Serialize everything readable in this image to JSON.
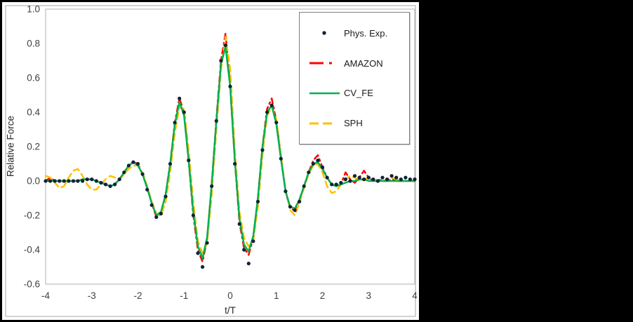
{
  "chart_data": {
    "type": "line",
    "title": "",
    "xlabel": "t/T",
    "ylabel": "Relative Force",
    "xlim": [
      -4,
      4
    ],
    "ylim": [
      -0.6,
      1.0
    ],
    "grid": false,
    "legend_position": "top-right-inside",
    "x_tick_labels": [
      "-4",
      "-3",
      "-2",
      "-1",
      "0",
      "1",
      "2",
      "3",
      "4"
    ],
    "y_tick_labels": [
      "1.0",
      "0.8",
      "0.6",
      "0.4",
      "0.2",
      "0.0",
      "-0.2",
      "-0.4",
      "-0.6"
    ],
    "axis_color": "#bfbfbf",
    "tick_text_color": "#404040",
    "x_start": -4,
    "x_step": 0.1,
    "series": [
      {
        "name": "Phys. Exp.",
        "style": "scatter",
        "color": "#122338",
        "values": [
          0.0,
          0.0,
          0.0,
          0.0,
          0.0,
          0.0,
          0.0,
          0.0,
          0.0,
          0.01,
          0.01,
          0.0,
          -0.01,
          -0.02,
          -0.03,
          -0.02,
          0.01,
          0.05,
          0.09,
          0.11,
          0.1,
          0.04,
          -0.05,
          -0.14,
          -0.21,
          -0.19,
          -0.09,
          0.1,
          0.34,
          0.48,
          0.4,
          0.12,
          -0.2,
          -0.42,
          -0.5,
          -0.36,
          -0.03,
          0.35,
          0.7,
          0.79,
          0.55,
          0.1,
          -0.25,
          -0.4,
          -0.48,
          -0.35,
          -0.12,
          0.18,
          0.4,
          0.44,
          0.34,
          0.13,
          -0.06,
          -0.15,
          -0.17,
          -0.12,
          -0.03,
          0.05,
          0.1,
          0.12,
          0.08,
          0.02,
          -0.02,
          -0.02,
          -0.01,
          0.01,
          0.0,
          0.03,
          0.02,
          0.01,
          0.02,
          0.01,
          0.0,
          0.02,
          0.01,
          0.03,
          0.02,
          0.01,
          0.02,
          0.01,
          0.01
        ]
      },
      {
        "name": "AMAZON",
        "style": "dash-dot",
        "color": "#ff0000",
        "values": [
          0.0,
          0.02,
          0.0,
          0.0,
          0.0,
          0.0,
          0.0,
          0.0,
          0.01,
          0.01,
          0.01,
          0.0,
          -0.01,
          -0.02,
          -0.03,
          -0.02,
          0.01,
          0.05,
          0.09,
          0.11,
          0.1,
          0.04,
          -0.04,
          -0.13,
          -0.21,
          -0.19,
          -0.08,
          0.1,
          0.34,
          0.48,
          0.4,
          0.12,
          -0.2,
          -0.4,
          -0.47,
          -0.34,
          -0.02,
          0.36,
          0.7,
          0.86,
          0.55,
          0.12,
          -0.24,
          -0.39,
          -0.43,
          -0.33,
          -0.1,
          0.2,
          0.42,
          0.48,
          0.35,
          0.14,
          -0.06,
          -0.16,
          -0.17,
          -0.11,
          -0.03,
          0.05,
          0.12,
          0.15,
          0.08,
          0.02,
          -0.02,
          -0.03,
          -0.02,
          0.05,
          0.01,
          -0.01,
          0.02,
          0.06,
          0.02,
          0.0,
          0.01,
          0.0,
          0.0,
          0.01,
          0.0,
          0.0,
          0.0,
          0.0,
          0.0
        ]
      },
      {
        "name": "CV_FE",
        "style": "solid",
        "color": "#00b050",
        "values": [
          0.0,
          0.0,
          0.0,
          0.0,
          0.0,
          0.0,
          0.0,
          0.0,
          0.01,
          0.01,
          0.01,
          0.0,
          -0.01,
          -0.02,
          -0.03,
          -0.02,
          0.01,
          0.05,
          0.09,
          0.11,
          0.09,
          0.04,
          -0.04,
          -0.13,
          -0.2,
          -0.18,
          -0.08,
          0.1,
          0.33,
          0.46,
          0.38,
          0.12,
          -0.18,
          -0.38,
          -0.45,
          -0.33,
          -0.02,
          0.35,
          0.68,
          0.78,
          0.55,
          0.12,
          -0.22,
          -0.37,
          -0.41,
          -0.32,
          -0.1,
          0.2,
          0.4,
          0.44,
          0.33,
          0.13,
          -0.06,
          -0.15,
          -0.16,
          -0.11,
          -0.03,
          0.05,
          0.1,
          0.11,
          0.07,
          0.02,
          -0.02,
          -0.03,
          -0.02,
          -0.01,
          0.0,
          0.0,
          0.01,
          0.01,
          0.0,
          0.0,
          0.0,
          0.0,
          0.0,
          0.0,
          0.0,
          0.0,
          0.0,
          0.0,
          0.0
        ]
      },
      {
        "name": "SPH",
        "style": "dash",
        "color": "#ffc000",
        "values": [
          0.03,
          0.02,
          -0.01,
          -0.04,
          -0.03,
          0.02,
          0.06,
          0.07,
          0.03,
          -0.02,
          -0.05,
          -0.05,
          -0.02,
          0.01,
          0.03,
          0.02,
          0.01,
          0.04,
          0.07,
          0.09,
          0.09,
          0.05,
          -0.03,
          -0.12,
          -0.19,
          -0.2,
          -0.12,
          0.05,
          0.28,
          0.43,
          0.42,
          0.18,
          -0.12,
          -0.35,
          -0.42,
          -0.36,
          -0.08,
          0.3,
          0.65,
          0.84,
          0.65,
          0.18,
          -0.18,
          -0.33,
          -0.38,
          -0.35,
          -0.15,
          0.15,
          0.38,
          0.43,
          0.36,
          0.15,
          -0.05,
          -0.17,
          -0.2,
          -0.13,
          -0.04,
          0.04,
          0.09,
          0.1,
          0.05,
          -0.03,
          -0.07,
          -0.06,
          -0.02,
          0.01,
          0.03,
          0.02,
          0.0,
          0.01,
          0.02,
          0.01,
          0.0,
          0.0,
          0.01,
          0.02,
          0.01,
          0.0,
          0.0,
          0.0,
          0.0
        ]
      }
    ]
  }
}
